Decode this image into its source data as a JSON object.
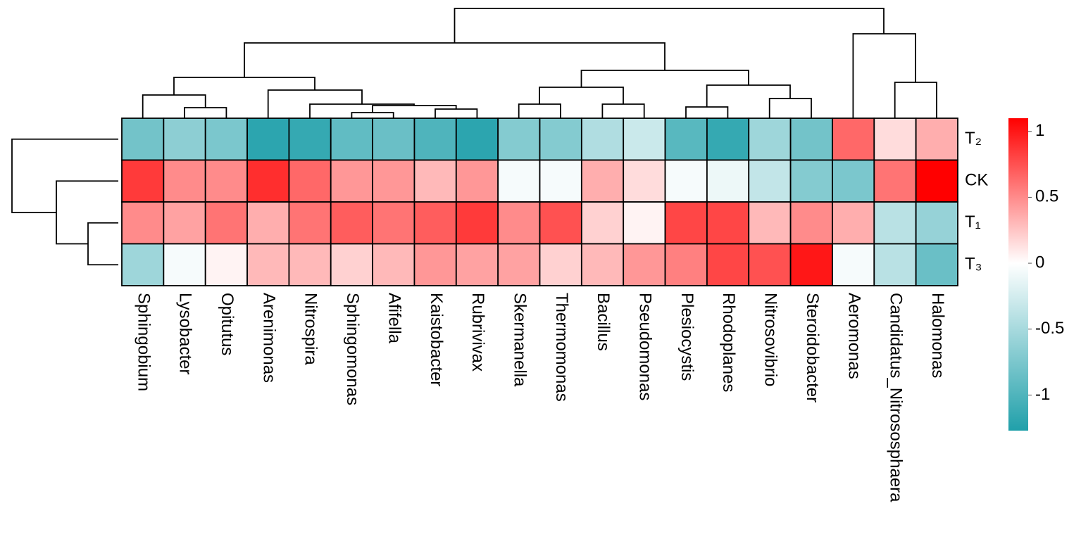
{
  "chart_data": {
    "type": "heatmap",
    "rows": [
      "T₂",
      "CK",
      "T₁",
      "T₃"
    ],
    "columns": [
      "Sphingobium",
      "Lysobacter",
      "Opitutus",
      "Arenimonas",
      "Nitrospira",
      "Sphingomonas",
      "Afifella",
      "Kaistobacter",
      "Rubrivivax",
      "Skermanella",
      "Thermomonas",
      "Bacillus",
      "Pseudomonas",
      "Plesiocystis",
      "Rhodoplanes",
      "Nitrosovibrio",
      "Steroidobacter",
      "Aeromonas",
      "Candidatus_Nitrososphaera",
      "Halomonas"
    ],
    "values": [
      [
        -0.8,
        -0.65,
        -0.75,
        -1.2,
        -1.15,
        -0.9,
        -0.85,
        -1.0,
        -1.2,
        -0.7,
        -0.7,
        -0.45,
        -0.3,
        -0.95,
        -1.15,
        -0.55,
        -0.8,
        0.65,
        0.15,
        0.35
      ],
      [
        0.85,
        0.5,
        0.5,
        0.9,
        0.65,
        0.45,
        0.45,
        0.3,
        0.45,
        -0.05,
        -0.05,
        0.35,
        0.15,
        -0.05,
        -0.1,
        -0.35,
        -0.7,
        -0.75,
        0.6,
        1.1
      ],
      [
        0.5,
        0.4,
        0.6,
        0.35,
        0.6,
        0.7,
        0.6,
        0.7,
        0.85,
        0.5,
        0.75,
        0.2,
        0.05,
        0.8,
        0.8,
        0.3,
        0.5,
        0.35,
        -0.4,
        -0.6
      ],
      [
        -0.55,
        -0.05,
        0.05,
        0.3,
        0.3,
        0.2,
        0.3,
        0.45,
        0.4,
        0.4,
        0.2,
        0.3,
        0.45,
        0.55,
        0.8,
        0.75,
        1.0,
        -0.05,
        -0.4,
        -0.85
      ]
    ],
    "zlim": [
      -1.27,
      1.1
    ],
    "zticks": [
      1,
      0.5,
      0,
      -0.5,
      -1
    ],
    "colors": {
      "low": "#20a0aa",
      "mid": "#ffffff",
      "high": "#ff0000"
    }
  }
}
